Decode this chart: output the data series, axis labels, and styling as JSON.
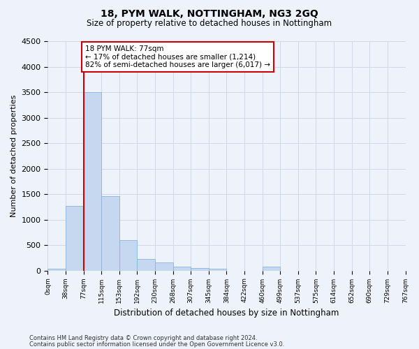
{
  "title": "18, PYM WALK, NOTTINGHAM, NG3 2GQ",
  "subtitle": "Size of property relative to detached houses in Nottingham",
  "xlabel": "Distribution of detached houses by size in Nottingham",
  "ylabel": "Number of detached properties",
  "bar_color": "#c5d8f0",
  "bar_edge_color": "#8ab4d8",
  "bin_labels": [
    "0sqm",
    "38sqm",
    "77sqm",
    "115sqm",
    "153sqm",
    "192sqm",
    "230sqm",
    "268sqm",
    "307sqm",
    "345sqm",
    "384sqm",
    "422sqm",
    "460sqm",
    "499sqm",
    "537sqm",
    "575sqm",
    "614sqm",
    "652sqm",
    "690sqm",
    "729sqm",
    "767sqm"
  ],
  "bin_values": [
    30,
    1270,
    3500,
    1460,
    600,
    230,
    160,
    80,
    50,
    30,
    0,
    0,
    80,
    0,
    0,
    0,
    0,
    0,
    0,
    0
  ],
  "ylim": [
    0,
    4500
  ],
  "yticks": [
    0,
    500,
    1000,
    1500,
    2000,
    2500,
    3000,
    3500,
    4000,
    4500
  ],
  "annotation_text": "18 PYM WALK: 77sqm\n← 17% of detached houses are smaller (1,214)\n82% of semi-detached houses are larger (6,017) →",
  "annotation_box_color": "#ffffff",
  "annotation_box_edge": "#cc0000",
  "vline_color": "#cc0000",
  "vline_x": 2,
  "background_color": "#eef2fa",
  "grid_color": "#d0d8eb",
  "footer_line1": "Contains HM Land Registry data © Crown copyright and database right 2024.",
  "footer_line2": "Contains public sector information licensed under the Open Government Licence v3.0."
}
